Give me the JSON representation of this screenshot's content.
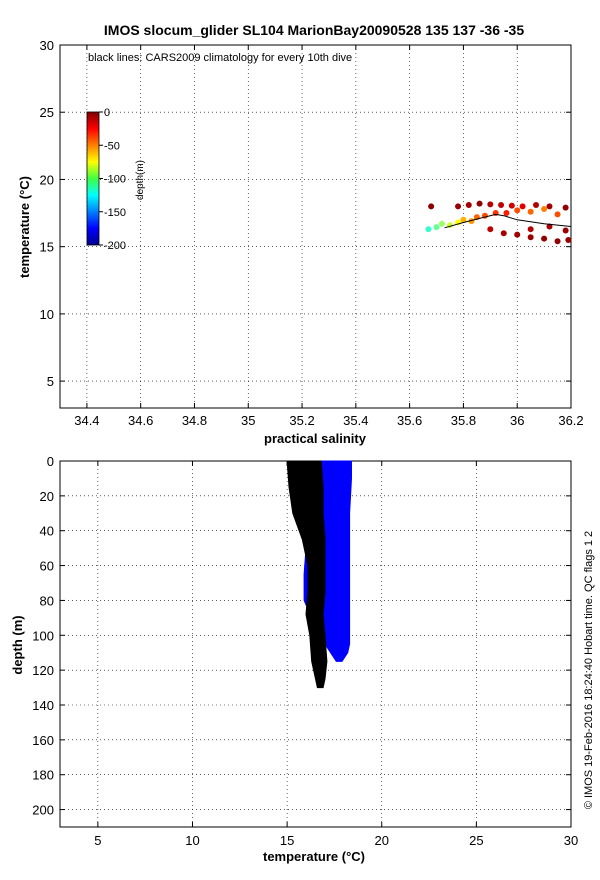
{
  "figure": {
    "title": "IMOS slocum_glider SL104 MarionBay20090528 135  137  -36  -35",
    "annotation": "black lines: CARS2009 climatology for every 10th dive",
    "credit": "© IMOS 19-Feb-2016 18:24:40 Hobart time. QC flags 1  2"
  },
  "colors": {
    "climatology": "#000000",
    "observations_profile": "#0000ff",
    "grid": "#000000",
    "colormap": "jet"
  },
  "chart_data": [
    {
      "type": "scatter",
      "name": "ts-diagram",
      "xlabel": "practical salinity",
      "ylabel": "temperature (°C)",
      "xlim": [
        34.3,
        36.2
      ],
      "ylim": [
        3,
        30
      ],
      "xticks": [
        34.4,
        34.6,
        34.8,
        35,
        35.2,
        35.4,
        35.6,
        35.8,
        36,
        36.2
      ],
      "xticklabels": [
        "34.4",
        "34.6",
        "34.8",
        "35",
        "35.2",
        "35.4",
        "35.6",
        "35.8",
        "36",
        "36.2"
      ],
      "yticks": [
        5,
        10,
        15,
        20,
        25,
        30
      ],
      "yticklabels": [
        "5",
        "10",
        "15",
        "20",
        "25",
        "30"
      ],
      "grid": true,
      "colorbar": {
        "label": "depth(m)",
        "range": [
          -200,
          0
        ],
        "ticks": [
          0,
          -50,
          -100,
          -150,
          -200
        ],
        "ticklabels": [
          "0",
          "-50",
          "-100",
          "-150",
          "-200"
        ],
        "colormap": "jet"
      },
      "series": [
        {
          "color_by": "depth",
          "points": [
            {
              "x": 35.67,
              "y": 16.3,
              "depth": -115
            },
            {
              "x": 35.7,
              "y": 16.45,
              "depth": -105
            },
            {
              "x": 35.72,
              "y": 16.7,
              "depth": -95
            },
            {
              "x": 35.75,
              "y": 16.6,
              "depth": -85
            },
            {
              "x": 35.78,
              "y": 16.8,
              "depth": -75
            },
            {
              "x": 35.8,
              "y": 17.0,
              "depth": -60
            },
            {
              "x": 35.83,
              "y": 16.9,
              "depth": -55
            },
            {
              "x": 35.85,
              "y": 17.2,
              "depth": -45
            },
            {
              "x": 35.88,
              "y": 17.3,
              "depth": -40
            },
            {
              "x": 35.92,
              "y": 17.5,
              "depth": -35
            },
            {
              "x": 35.96,
              "y": 17.5,
              "depth": -30
            },
            {
              "x": 36.0,
              "y": 17.7,
              "depth": -40
            },
            {
              "x": 36.05,
              "y": 17.6,
              "depth": -45
            },
            {
              "x": 36.1,
              "y": 17.8,
              "depth": -50
            },
            {
              "x": 36.15,
              "y": 17.4,
              "depth": -40
            },
            {
              "x": 35.78,
              "y": 18.0,
              "depth": -5
            },
            {
              "x": 35.82,
              "y": 18.1,
              "depth": -8
            },
            {
              "x": 35.86,
              "y": 18.2,
              "depth": -3
            },
            {
              "x": 35.9,
              "y": 18.15,
              "depth": -10
            },
            {
              "x": 35.94,
              "y": 18.1,
              "depth": -12
            },
            {
              "x": 35.98,
              "y": 18.05,
              "depth": -15
            },
            {
              "x": 36.02,
              "y": 18.0,
              "depth": -20
            },
            {
              "x": 36.07,
              "y": 18.1,
              "depth": -10
            },
            {
              "x": 36.12,
              "y": 18.0,
              "depth": -6
            },
            {
              "x": 36.18,
              "y": 17.9,
              "depth": -4
            },
            {
              "x": 35.9,
              "y": 16.3,
              "depth": -12
            },
            {
              "x": 35.95,
              "y": 16.0,
              "depth": -8
            },
            {
              "x": 36.0,
              "y": 15.9,
              "depth": -6
            },
            {
              "x": 36.05,
              "y": 15.7,
              "depth": -5
            },
            {
              "x": 36.1,
              "y": 15.6,
              "depth": -4
            },
            {
              "x": 36.15,
              "y": 15.4,
              "depth": -3
            },
            {
              "x": 36.19,
              "y": 15.5,
              "depth": -5
            },
            {
              "x": 36.05,
              "y": 16.3,
              "depth": -10
            },
            {
              "x": 36.12,
              "y": 16.5,
              "depth": -8
            },
            {
              "x": 36.18,
              "y": 16.2,
              "depth": -6
            },
            {
              "x": 35.68,
              "y": 18.0,
              "depth": -2
            }
          ]
        },
        {
          "name": "CARS2009 climatology",
          "color": "#000000",
          "type": "line",
          "points": [
            {
              "x": 35.73,
              "y": 16.4
            },
            {
              "x": 35.8,
              "y": 16.8
            },
            {
              "x": 35.86,
              "y": 17.1
            },
            {
              "x": 35.92,
              "y": 17.4
            },
            {
              "x": 35.95,
              "y": 17.3
            },
            {
              "x": 36.0,
              "y": 17.0
            },
            {
              "x": 36.1,
              "y": 16.7
            },
            {
              "x": 36.2,
              "y": 16.5
            }
          ]
        }
      ]
    },
    {
      "type": "area",
      "name": "temperature-depth",
      "xlabel": "temperature (°C)",
      "ylabel": "depth (m)",
      "xlim": [
        3,
        30
      ],
      "ylim": [
        0,
        210
      ],
      "y_reversed": true,
      "xticks": [
        5,
        10,
        15,
        20,
        25,
        30
      ],
      "xticklabels": [
        "5",
        "10",
        "15",
        "20",
        "25",
        "30"
      ],
      "yticks": [
        0,
        20,
        40,
        60,
        80,
        100,
        120,
        140,
        160,
        180,
        200
      ],
      "yticklabels": [
        "0",
        "20",
        "40",
        "60",
        "80",
        "100",
        "120",
        "140",
        "160",
        "180",
        "200"
      ],
      "grid": true,
      "series": [
        {
          "name": "glider observations",
          "color": "#0000ff",
          "band": [
            {
              "depth": 0,
              "tmin": 15.9,
              "tmax": 18.4
            },
            {
              "depth": 10,
              "tmin": 15.9,
              "tmax": 18.4
            },
            {
              "depth": 30,
              "tmin": 16.0,
              "tmax": 18.3
            },
            {
              "depth": 50,
              "tmin": 16.0,
              "tmax": 18.3
            },
            {
              "depth": 65,
              "tmin": 15.9,
              "tmax": 18.3
            },
            {
              "depth": 80,
              "tmin": 15.9,
              "tmax": 18.3
            },
            {
              "depth": 95,
              "tmin": 16.5,
              "tmax": 18.3
            },
            {
              "depth": 105,
              "tmin": 17.0,
              "tmax": 18.3
            },
            {
              "depth": 110,
              "tmin": 17.3,
              "tmax": 18.2
            },
            {
              "depth": 115,
              "tmin": 17.6,
              "tmax": 17.9
            }
          ]
        },
        {
          "name": "CARS2009 climatology",
          "color": "#000000",
          "band": [
            {
              "depth": 0,
              "tmin": 15.0,
              "tmax": 16.8
            },
            {
              "depth": 15,
              "tmin": 15.1,
              "tmax": 16.9
            },
            {
              "depth": 30,
              "tmin": 15.3,
              "tmax": 16.9
            },
            {
              "depth": 45,
              "tmin": 15.8,
              "tmax": 17.0
            },
            {
              "depth": 60,
              "tmin": 16.1,
              "tmax": 17.0
            },
            {
              "depth": 75,
              "tmin": 16.1,
              "tmax": 17.0
            },
            {
              "depth": 88,
              "tmin": 16.0,
              "tmax": 16.9
            },
            {
              "depth": 100,
              "tmin": 16.2,
              "tmax": 17.0
            },
            {
              "depth": 115,
              "tmin": 16.3,
              "tmax": 17.1
            },
            {
              "depth": 125,
              "tmin": 16.5,
              "tmax": 17.0
            },
            {
              "depth": 130,
              "tmin": 16.6,
              "tmax": 16.9
            }
          ]
        }
      ]
    }
  ]
}
